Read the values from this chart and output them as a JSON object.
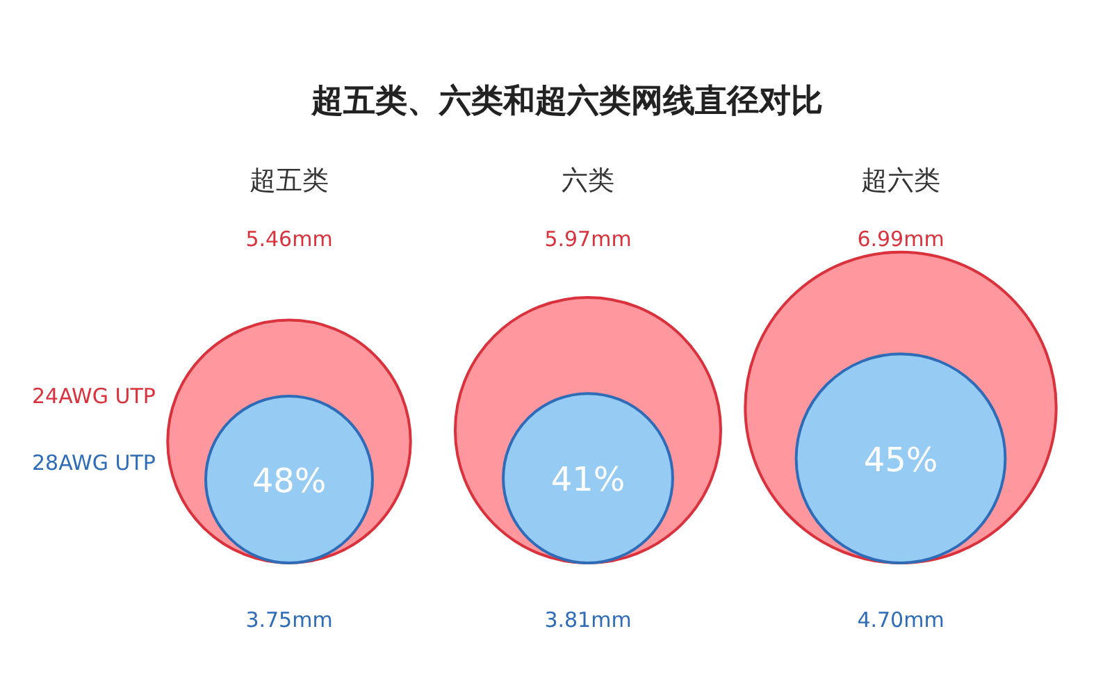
{
  "chart_data": {
    "type": "other",
    "title": "超五类、六类和超六类网线直径对比",
    "categories": [
      "超五类",
      "六类",
      "超六类"
    ],
    "series": [
      {
        "name": "24AWG UTP",
        "color": "#d9323c",
        "values": [
          5.46,
          5.97,
          6.99
        ],
        "value_labels": [
          "5.46mm",
          "5.97mm",
          "6.99mm"
        ]
      },
      {
        "name": "28AWG UTP",
        "color": "#2f6cb8",
        "values": [
          3.75,
          3.81,
          4.7
        ],
        "value_labels": [
          "3.75mm",
          "3.81mm",
          "4.70mm"
        ]
      }
    ],
    "annotations": [
      "48%",
      "41%",
      "45%"
    ]
  }
}
